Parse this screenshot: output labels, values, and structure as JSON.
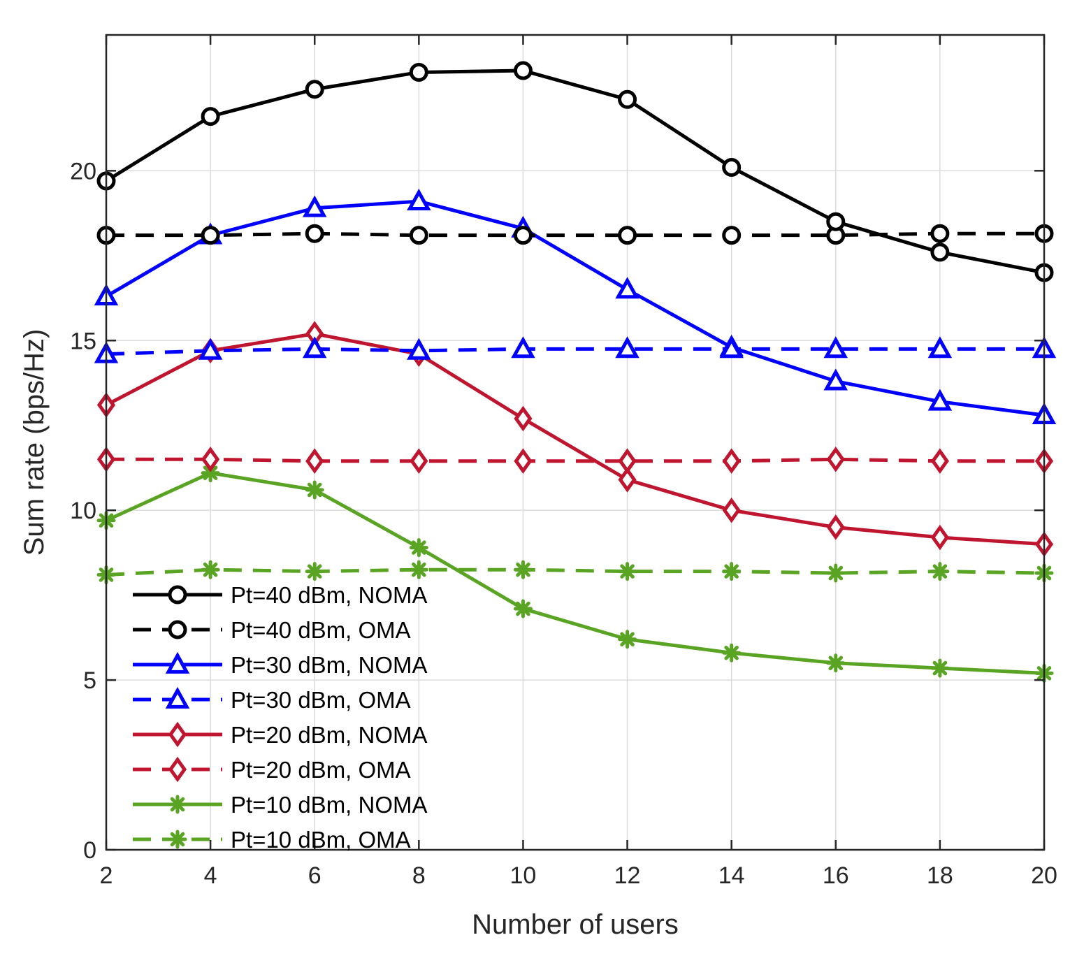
{
  "chart_data": {
    "type": "line",
    "title": "",
    "xlabel": "Number of users",
    "ylabel": "Sum rate (bps/Hz)",
    "xlim": [
      2,
      20
    ],
    "ylim": [
      0,
      24
    ],
    "xticks": [
      2,
      4,
      6,
      8,
      10,
      12,
      14,
      16,
      18,
      20
    ],
    "yticks": [
      0,
      5,
      10,
      15,
      20
    ],
    "grid": true,
    "legend_position": "bottom-left",
    "x": [
      2,
      4,
      6,
      8,
      10,
      12,
      14,
      16,
      18,
      20
    ],
    "series": [
      {
        "name": "Pt=40 dBm, NOMA",
        "color": "#000000",
        "dash": "solid",
        "marker": "circle",
        "values": [
          19.7,
          21.6,
          22.4,
          22.9,
          22.95,
          22.1,
          20.1,
          18.5,
          17.6,
          17.0
        ]
      },
      {
        "name": "Pt=40 dBm, OMA",
        "color": "#000000",
        "dash": "dashed",
        "marker": "circle",
        "values": [
          18.1,
          18.1,
          18.15,
          18.1,
          18.1,
          18.1,
          18.1,
          18.1,
          18.15,
          18.15
        ]
      },
      {
        "name": "Pt=30 dBm, NOMA",
        "color": "#0000ff",
        "dash": "solid",
        "marker": "triangle",
        "values": [
          16.3,
          18.1,
          18.9,
          19.1,
          18.3,
          16.5,
          14.8,
          13.8,
          13.2,
          12.8
        ]
      },
      {
        "name": "Pt=30 dBm, OMA",
        "color": "#0000ff",
        "dash": "dashed",
        "marker": "triangle",
        "values": [
          14.6,
          14.7,
          14.75,
          14.7,
          14.75,
          14.75,
          14.75,
          14.75,
          14.75,
          14.75
        ]
      },
      {
        "name": "Pt=20 dBm, NOMA",
        "color": "#c0152f",
        "dash": "solid",
        "marker": "diamond",
        "values": [
          13.1,
          14.7,
          15.2,
          14.6,
          12.7,
          10.9,
          10.0,
          9.5,
          9.2,
          9.0
        ]
      },
      {
        "name": "Pt=20 dBm, OMA",
        "color": "#c0152f",
        "dash": "dashed",
        "marker": "diamond",
        "values": [
          11.5,
          11.5,
          11.45,
          11.45,
          11.45,
          11.45,
          11.45,
          11.5,
          11.45,
          11.45
        ]
      },
      {
        "name": "Pt=10 dBm, NOMA",
        "color": "#5aa423",
        "dash": "solid",
        "marker": "asterisk",
        "values": [
          9.7,
          11.1,
          10.6,
          8.9,
          7.1,
          6.2,
          5.8,
          5.5,
          5.35,
          5.2
        ]
      },
      {
        "name": "Pt=10 dBm, OMA",
        "color": "#5aa423",
        "dash": "dashed",
        "marker": "asterisk",
        "values": [
          8.1,
          8.25,
          8.2,
          8.25,
          8.25,
          8.2,
          8.2,
          8.15,
          8.2,
          8.15
        ]
      }
    ]
  }
}
